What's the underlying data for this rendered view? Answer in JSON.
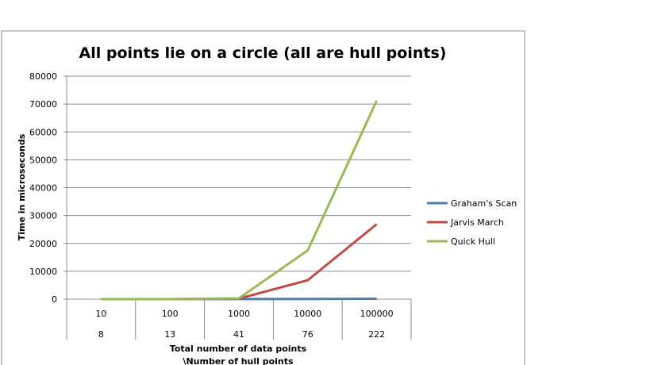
{
  "chart_data": {
    "type": "line",
    "title": "All points lie on a circle (all are hull points)",
    "ylabel": "Time in microseconds",
    "xlabel_lines": [
      "Total number of data points",
      "\\Number of hull points"
    ],
    "categories": [
      "10",
      "100",
      "1000",
      "10000",
      "100000"
    ],
    "categories_secondary": [
      "8",
      "13",
      "41",
      "76",
      "222"
    ],
    "ylim": [
      0,
      80000
    ],
    "yticks": [
      "80000",
      "70000",
      "60000",
      "50000",
      "40000",
      "30000",
      "20000",
      "10000",
      "0"
    ],
    "grid": true,
    "legend_position": "right",
    "series": [
      {
        "name": "Graham's Scan",
        "color": "#4a7ebb",
        "values": [
          0,
          0,
          50,
          80,
          150
        ]
      },
      {
        "name": "Jarvis March",
        "color": "#be4b48",
        "values": [
          0,
          0,
          200,
          6800,
          26900
        ]
      },
      {
        "name": "Quick Hull",
        "color": "#98b954",
        "values": [
          0,
          0,
          300,
          17500,
          71200
        ]
      }
    ]
  }
}
